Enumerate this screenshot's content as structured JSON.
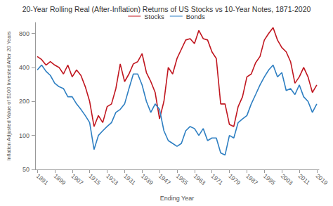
{
  "chart_data": {
    "type": "line",
    "title": "20-Year Rolling Real (After-Inflation) Returns of US Stocks vs 10-Year Notes, 1871-2020",
    "x_label": "Ending Year",
    "y_label": "Inflation Adjusted Value of $100 Invested After 20 Years",
    "x": [
      1891,
      1893,
      1895,
      1897,
      1899,
      1901,
      1903,
      1905,
      1907,
      1909,
      1911,
      1913,
      1915,
      1917,
      1919,
      1921,
      1923,
      1925,
      1927,
      1929,
      1931,
      1933,
      1935,
      1937,
      1939,
      1941,
      1943,
      1945,
      1947,
      1949,
      1951,
      1953,
      1955,
      1957,
      1959,
      1961,
      1963,
      1965,
      1967,
      1969,
      1971,
      1973,
      1975,
      1977,
      1979,
      1981,
      1983,
      1985,
      1987,
      1989,
      1991,
      1993,
      1995,
      1997,
      1999,
      2001,
      2003,
      2005,
      2007,
      2009,
      2011,
      2013,
      2015,
      2017,
      2019
    ],
    "series": [
      {
        "name": "Stocks",
        "color": "#c0161f",
        "values": [
          500,
          470,
          420,
          450,
          420,
          400,
          350,
          420,
          330,
          380,
          340,
          270,
          200,
          120,
          150,
          130,
          180,
          190,
          260,
          430,
          300,
          350,
          430,
          450,
          530,
          360,
          300,
          240,
          140,
          200,
          400,
          350,
          480,
          580,
          700,
          720,
          650,
          850,
          720,
          700,
          550,
          480,
          190,
          190,
          125,
          120,
          180,
          220,
          330,
          350,
          440,
          500,
          700,
          800,
          900,
          700,
          600,
          550,
          450,
          290,
          330,
          400,
          330,
          240,
          280
        ]
      },
      {
        "name": "Bonds",
        "color": "#2e7fc2",
        "values": [
          380,
          420,
          370,
          340,
          290,
          270,
          260,
          220,
          220,
          190,
          170,
          150,
          130,
          75,
          100,
          110,
          120,
          130,
          160,
          170,
          190,
          260,
          350,
          350,
          280,
          200,
          160,
          190,
          170,
          110,
          90,
          85,
          80,
          85,
          110,
          120,
          115,
          100,
          115,
          90,
          95,
          95,
          70,
          67,
          100,
          95,
          130,
          140,
          150,
          190,
          230,
          280,
          330,
          380,
          420,
          330,
          360,
          250,
          260,
          230,
          280,
          220,
          200,
          160,
          190
        ]
      }
    ],
    "xlim": [
      1890,
      2020
    ],
    "xticks": [
      1891,
      1899,
      1907,
      1915,
      1923,
      1931,
      1939,
      1947,
      1955,
      1963,
      1971,
      1979,
      1987,
      1995,
      2003,
      2011,
      2019
    ],
    "ylim": [
      50,
      1000
    ],
    "yticks": [
      50,
      100,
      200,
      400,
      800
    ],
    "log": "y",
    "grid": false,
    "legend": "top"
  }
}
